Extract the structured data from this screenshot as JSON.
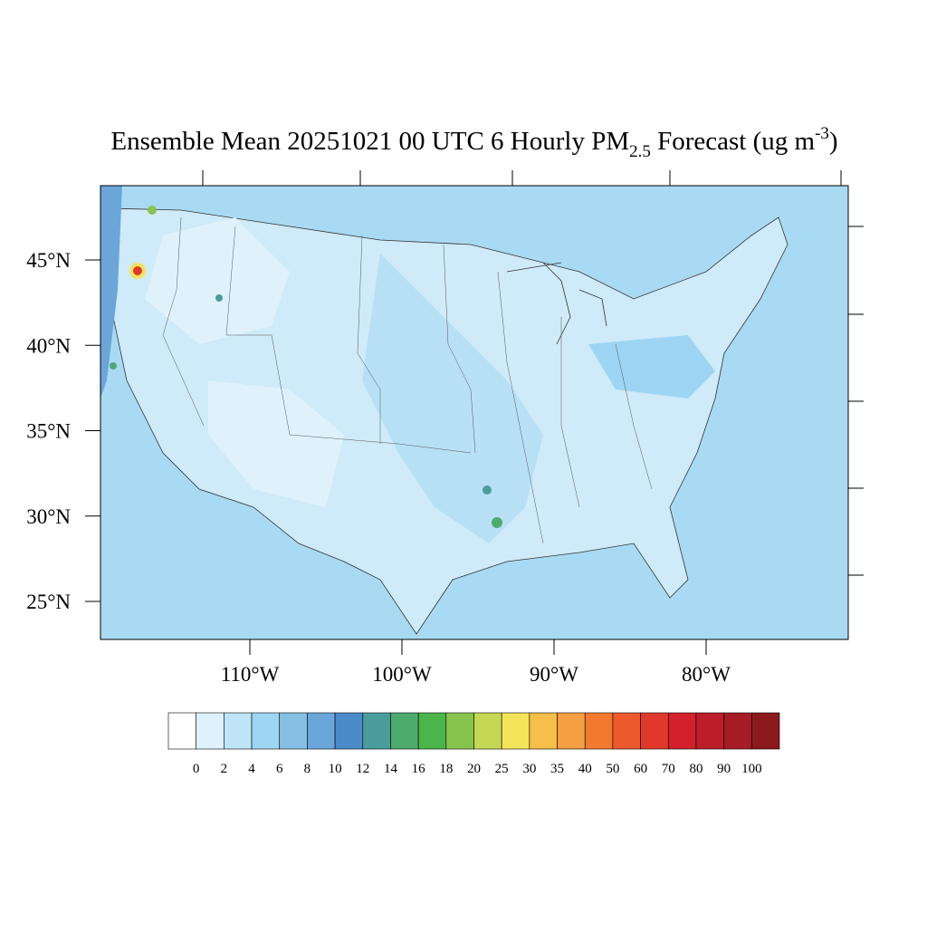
{
  "map": {
    "title": {
      "main": "Ensemble Mean 20251021 00 UTC 6 Hourly PM",
      "sub": "2.5",
      "mid": " Forecast (ug m",
      "sup": "-3",
      "end": ")"
    },
    "lat_ticks": [
      {
        "value": 45,
        "label": "45°N"
      },
      {
        "value": 40,
        "label": "40°N"
      },
      {
        "value": 35,
        "label": "35°N"
      },
      {
        "value": 30,
        "label": "30°N"
      },
      {
        "value": 25,
        "label": "25°N"
      }
    ],
    "lon_ticks": [
      {
        "value": -110,
        "label": "110°W"
      },
      {
        "value": -100,
        "label": "100°W"
      },
      {
        "value": -90,
        "label": "90°W"
      },
      {
        "value": -80,
        "label": "80°W"
      }
    ],
    "colorbar": {
      "levels": [
        0,
        2,
        4,
        6,
        8,
        10,
        12,
        14,
        16,
        18,
        20,
        25,
        30,
        35,
        40,
        50,
        60,
        70,
        80,
        90,
        100
      ],
      "colors": [
        "#ffffff",
        "#dff2fb",
        "#bde5f7",
        "#9dd5f2",
        "#85bfe3",
        "#6aa6d9",
        "#4a8cc9",
        "#4b9c9c",
        "#4eab6e",
        "#4ab54a",
        "#86c44e",
        "#c4d856",
        "#f4e45a",
        "#f7be4a",
        "#f59e42",
        "#f27a2f",
        "#ec5a2c",
        "#e0392b",
        "#d4202c",
        "#bb1e28",
        "#a51c24",
        "#8b1a1c"
      ]
    }
  }
}
